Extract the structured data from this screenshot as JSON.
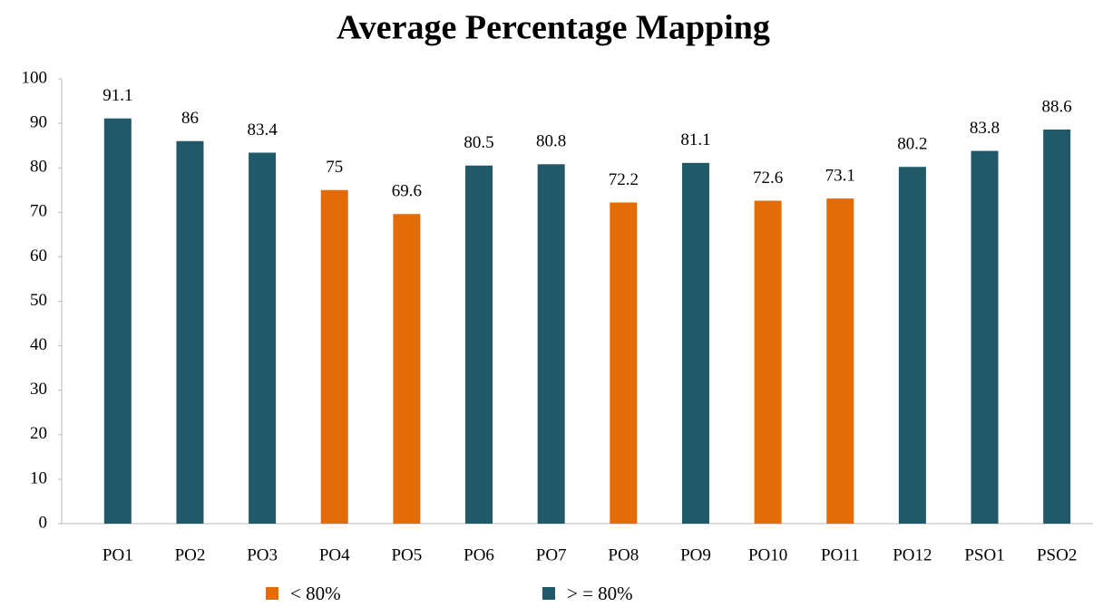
{
  "chart_data": {
    "type": "bar",
    "title": "Average Percentage Mapping",
    "categories": [
      "PO1",
      "PO2",
      "PO3",
      "PO4",
      "PO5",
      "PO6",
      "PO7",
      "PO8",
      "PO9",
      "PO10",
      "PO11",
      "PO12",
      "PSO1",
      "PSO2"
    ],
    "series": [
      {
        "name": "< 80%",
        "color": "#e36c09",
        "values": [
          null,
          null,
          null,
          75,
          69.6,
          null,
          null,
          72.2,
          null,
          72.6,
          73.1,
          null,
          null,
          null
        ]
      },
      {
        "name": "> = 80%",
        "color": "#215968",
        "values": [
          91.1,
          86,
          83.4,
          null,
          null,
          80.5,
          80.8,
          null,
          81.1,
          null,
          null,
          80.2,
          83.8,
          88.6
        ]
      }
    ],
    "ylim": [
      0,
      100
    ],
    "yticks": [
      0,
      10,
      20,
      30,
      40,
      50,
      60,
      70,
      80,
      90,
      100
    ],
    "grid": false,
    "legend": "bottom"
  }
}
